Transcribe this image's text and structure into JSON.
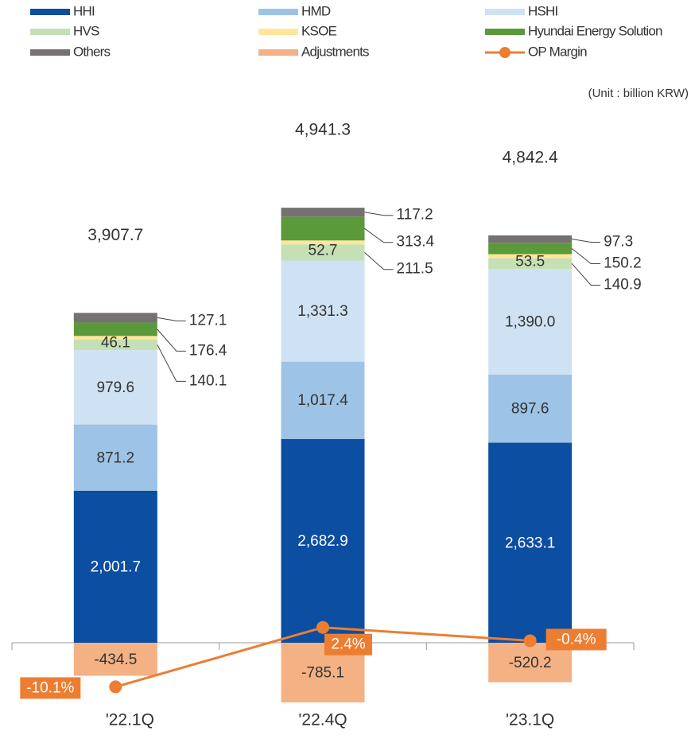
{
  "chart_data": {
    "type": "bar",
    "stacked": true,
    "unit_note": "(Unit : billion KRW)",
    "categories": [
      "'22.1Q",
      "'22.4Q",
      "'23.1Q"
    ],
    "ylim": [
      -1200,
      8000
    ],
    "y2lim": [
      -20,
      127
    ],
    "series": [
      {
        "name": "HHI",
        "color": "#0b4ea2",
        "values": [
          2001.7,
          2682.9,
          2633.1
        ],
        "value_labels": [
          "2,001.7",
          "2,682.9",
          "2,633.1"
        ]
      },
      {
        "name": "HMD",
        "color": "#9dc3e6",
        "values": [
          871.2,
          1017.4,
          897.6
        ],
        "value_labels": [
          "871.2",
          "1,017.4",
          "897.6"
        ]
      },
      {
        "name": "HSHI",
        "color": "#cfe2f3",
        "values": [
          979.6,
          1331.3,
          1390.0
        ],
        "value_labels": [
          "979.6",
          "1,331.3",
          "1,390.0"
        ]
      },
      {
        "name": "HVS",
        "color": "#c5e0b4",
        "values": [
          140.1,
          211.5,
          140.9
        ]
      },
      {
        "name": "KSOE",
        "color": "#ffe699",
        "values": [
          46.1,
          52.7,
          53.5
        ]
      },
      {
        "name": "Hyundai Energy Solution",
        "color": "#5a9a3a",
        "values": [
          176.4,
          313.4,
          150.2
        ]
      },
      {
        "name": "Others",
        "color": "#767171",
        "values": [
          127.1,
          117.2,
          97.3
        ]
      },
      {
        "name": "Adjustments",
        "color": "#f4b183",
        "values": [
          -434.5,
          -785.1,
          -520.2
        ]
      },
      {
        "name": "OP Margin",
        "type": "line",
        "axis": "y2",
        "color": "#ed7d31",
        "values": [
          -10.1,
          2.4,
          -0.4
        ],
        "value_labels": [
          "-10.1%",
          "2.4%",
          "-0.4%"
        ]
      }
    ],
    "totals": [
      3907.7,
      4941.3,
      4842.4
    ],
    "total_labels": [
      "3,907.7",
      "4,941.3",
      "4,842.4"
    ]
  }
}
